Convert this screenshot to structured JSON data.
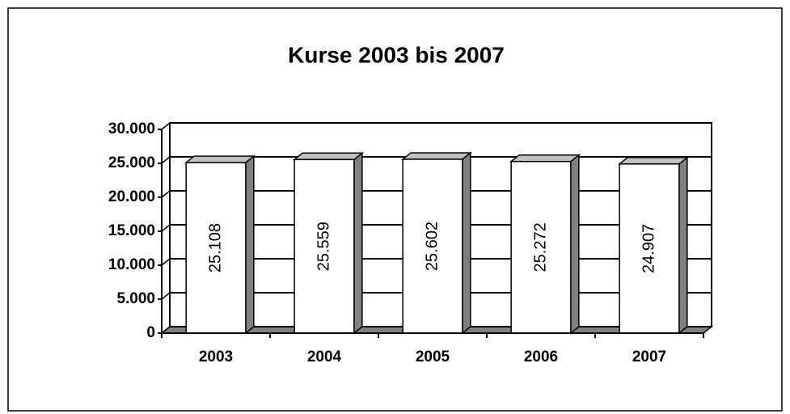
{
  "chart_data": {
    "type": "bar3d",
    "title": "Kurse 2003 bis 2007",
    "categories": [
      "2003",
      "2004",
      "2005",
      "2006",
      "2007"
    ],
    "values": [
      25108,
      25559,
      25602,
      25272,
      24907
    ],
    "value_labels": [
      "25.108",
      "25.559",
      "25.602",
      "25.272",
      "24.907"
    ],
    "color": "#ffffff",
    "ylim": [
      0,
      30000
    ],
    "yticks": [
      0,
      {
        "value": 5000,
        "label": "5.000"
      },
      {
        "value": 10000,
        "label": "10.000"
      },
      {
        "value": 15000,
        "label": "15.000"
      },
      {
        "value": 20000,
        "label": "20.000"
      },
      {
        "value": 25000,
        "label": "25.000"
      },
      {
        "value": 30000,
        "label": "30.000"
      }
    ],
    "grid": true
  }
}
